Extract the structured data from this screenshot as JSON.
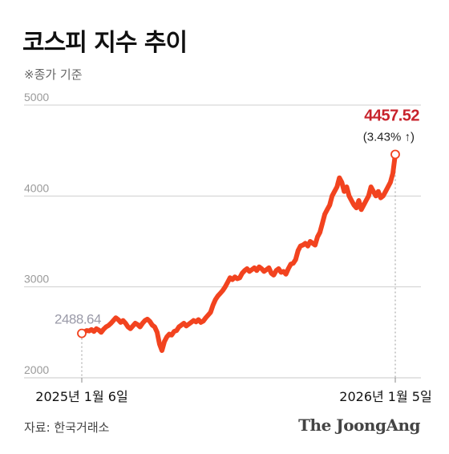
{
  "title": "코스피 지수 추이",
  "subtitle": "※종가 기준",
  "source": "자료: 한국거래소",
  "logo": "The JoongAng",
  "colors": {
    "line": "#f2431f",
    "end_label": "#c8232c",
    "start_label": "#9a9aa8",
    "grid": "#cfcfcf",
    "axis_text": "#9a9a9a"
  },
  "chart_data": {
    "type": "line",
    "title": "코스피 지수 추이",
    "ylim": [
      2000,
      5000
    ],
    "yticks": [
      2000,
      3000,
      4000,
      5000
    ],
    "ytick_labels": [
      "2000",
      "3000",
      "4000",
      "5000"
    ],
    "x_start_label": "2025년 1월 6일",
    "x_end_label": "2026년 1월 5일",
    "start_value_label": "2488.64",
    "end_value_label": "4457.52",
    "end_change_label": "(3.43% ↑)",
    "series": [
      {
        "values": [
          2488.64,
          2505,
          2520,
          2515,
          2530,
          2510,
          2540,
          2525,
          2500,
          2535,
          2560,
          2575,
          2600,
          2630,
          2660,
          2640,
          2610,
          2630,
          2600,
          2560,
          2540,
          2570,
          2600,
          2585,
          2560,
          2600,
          2630,
          2645,
          2620,
          2580,
          2560,
          2500,
          2370,
          2300,
          2400,
          2450,
          2480,
          2470,
          2510,
          2520,
          2560,
          2580,
          2600,
          2570,
          2590,
          2610,
          2630,
          2615,
          2640,
          2610,
          2625,
          2660,
          2690,
          2720,
          2800,
          2860,
          2900,
          2930,
          2960,
          3000,
          3050,
          3100,
          3080,
          3110,
          3090,
          3100,
          3150,
          3180,
          3200,
          3170,
          3190,
          3210,
          3180,
          3220,
          3200,
          3170,
          3190,
          3210,
          3150,
          3130,
          3180,
          3200,
          3160,
          3170,
          3140,
          3200,
          3250,
          3260,
          3300,
          3400,
          3450,
          3460,
          3480,
          3450,
          3500,
          3480,
          3460,
          3550,
          3600,
          3700,
          3800,
          3850,
          3900,
          4000,
          4050,
          4100,
          4200,
          4150,
          4050,
          4100,
          4000,
          3950,
          3900,
          3870,
          3950,
          3850,
          3900,
          3950,
          4000,
          4100,
          4050,
          4000,
          4050,
          3980,
          4000,
          4050,
          4100,
          4150,
          4250,
          4457.52
        ]
      }
    ]
  }
}
